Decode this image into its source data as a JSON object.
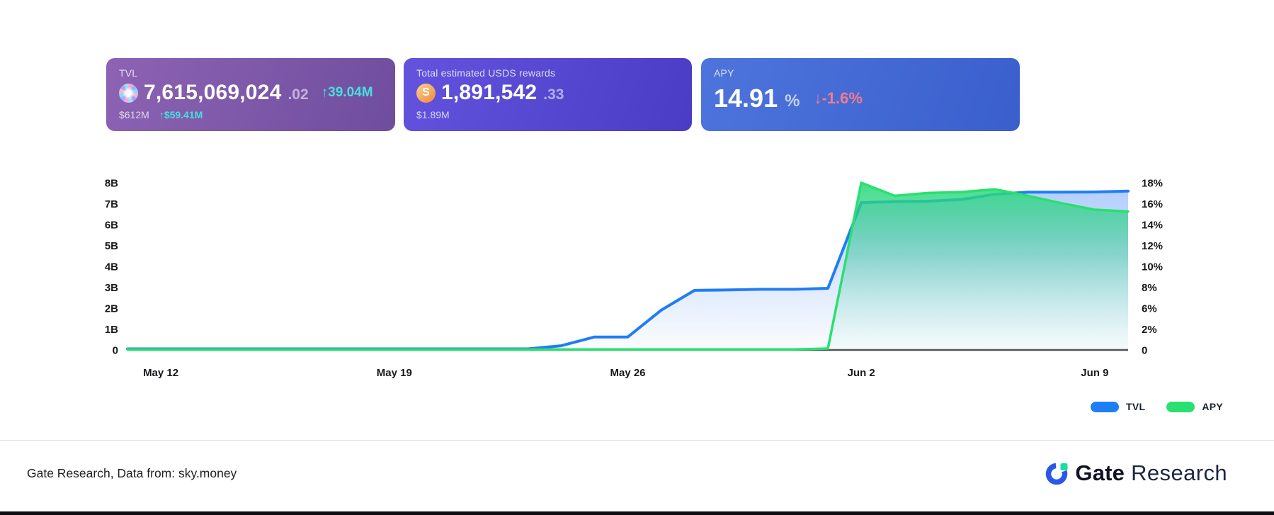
{
  "cards": {
    "tvl": {
      "label": "TVL",
      "value_int": "7,615,069,024",
      "value_dec": ".02",
      "delta": "↑39.04M",
      "sub_value": "$612M",
      "sub_delta": "↑$59.41M",
      "accent": "#46e0dc",
      "bg_from": "#8d63b4",
      "bg_to": "#6f4d9e"
    },
    "rewards": {
      "label": "Total estimated USDS rewards",
      "value_int": "1,891,542",
      "value_dec": ".33",
      "sub_value": "$1.89M",
      "icon_glyph": "S",
      "bg_from": "#6353de",
      "bg_to": "#4a3cc4"
    },
    "apy": {
      "label": "APY",
      "value_int": "14.91",
      "value_unit": "%",
      "delta": "↓-1.6%",
      "delta_color": "#f47b8e",
      "bg_from": "#4e74dc",
      "bg_to": "#3a5fcd"
    }
  },
  "chart_data": {
    "type": "area",
    "title": "",
    "xlabel": "",
    "ylabel_left": "TVL",
    "ylabel_right": "APY",
    "grid": false,
    "x": [
      "May 11",
      "May 12",
      "May 13",
      "May 14",
      "May 15",
      "May 16",
      "May 17",
      "May 18",
      "May 19",
      "May 20",
      "May 21",
      "May 22",
      "May 23",
      "May 24",
      "May 25",
      "May 26",
      "May 27",
      "May 28",
      "May 29",
      "May 30",
      "May 31",
      "Jun 1",
      "Jun 2",
      "Jun 3",
      "Jun 4",
      "Jun 5",
      "Jun 6",
      "Jun 7",
      "Jun 8",
      "Jun 9",
      "Jun 10"
    ],
    "series": [
      {
        "name": "TVL",
        "axis": "left",
        "unit": "B",
        "color": "#1f7df6",
        "values": [
          0.05,
          0.05,
          0.05,
          0.05,
          0.05,
          0.05,
          0.05,
          0.05,
          0.05,
          0.05,
          0.05,
          0.05,
          0.05,
          0.2,
          0.62,
          0.62,
          1.9,
          2.85,
          2.87,
          2.9,
          2.9,
          2.95,
          7.05,
          7.1,
          7.12,
          7.2,
          7.45,
          7.55,
          7.55,
          7.56,
          7.6
        ]
      },
      {
        "name": "APY",
        "axis": "right",
        "unit": "%",
        "color": "#29e070",
        "values": [
          0.05,
          0.05,
          0.05,
          0.05,
          0.05,
          0.05,
          0.05,
          0.05,
          0.05,
          0.05,
          0.05,
          0.05,
          0.05,
          0.05,
          0.05,
          0.05,
          0.05,
          0.05,
          0.05,
          0.05,
          0.05,
          0.15,
          18,
          16.6,
          16.9,
          17,
          17.3,
          16.6,
          15.8,
          15.1,
          14.91
        ]
      }
    ],
    "left_axis": {
      "max": 8,
      "min": 0,
      "ticks": [
        "8B",
        "7B",
        "6B",
        "5B",
        "4B",
        "3B",
        "2B",
        "1B",
        "0"
      ]
    },
    "right_axis": {
      "max": 18,
      "min": 0,
      "ticks": [
        "18%",
        "16%",
        "14%",
        "12%",
        "10%",
        "8%",
        "6%",
        "2%",
        "0"
      ]
    },
    "x_ticks": {
      "labels": [
        "May 12",
        "May 19",
        "May 26",
        "Jun 2",
        "Jun 9"
      ],
      "indices": [
        1,
        8,
        15,
        22,
        29
      ]
    },
    "legend": [
      {
        "label": "TVL",
        "color": "#1f7df6"
      },
      {
        "label": "APY",
        "color": "#29e070"
      }
    ],
    "legend_position": "bottom-right"
  },
  "footer": {
    "source": "Gate Research, Data from: sky.money",
    "brand_bold": "Gate",
    "brand_light": "Research"
  }
}
